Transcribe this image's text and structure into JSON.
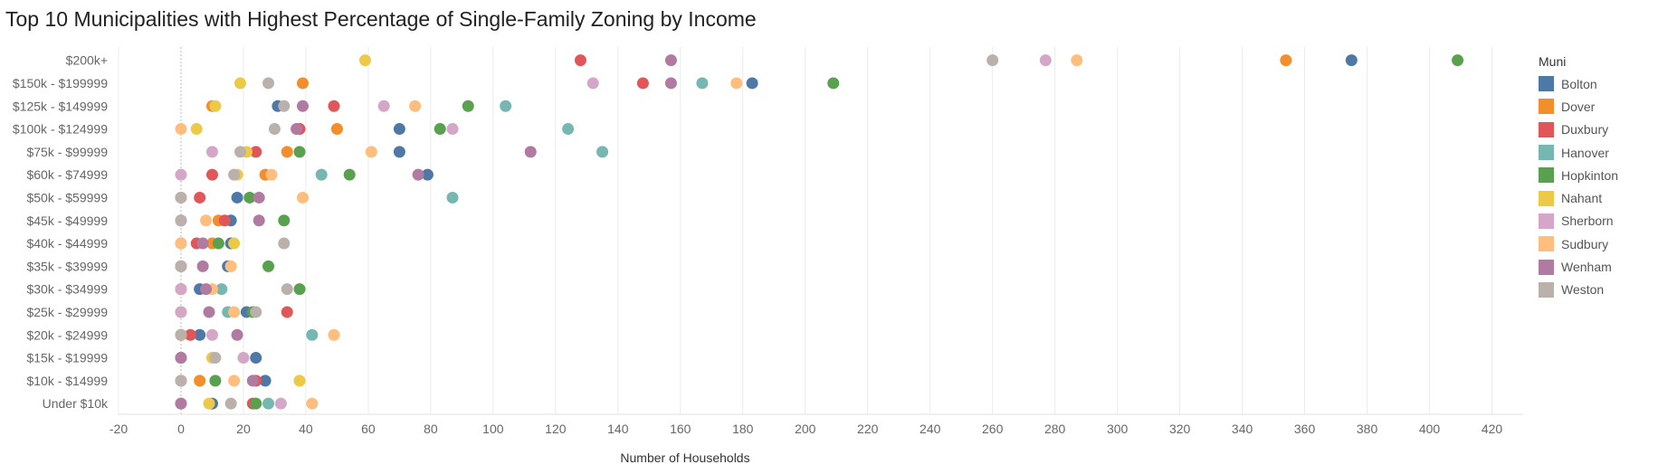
{
  "chart_data": {
    "type": "scatter",
    "title": "Top 10 Municipalities with Highest Percentage of Single-Family Zoning by Income",
    "xlabel": "Number of Households",
    "ylabel": "",
    "xlim": [
      -20,
      430
    ],
    "xticks": [
      -20,
      0,
      20,
      40,
      60,
      80,
      100,
      120,
      140,
      160,
      180,
      200,
      220,
      240,
      260,
      280,
      300,
      320,
      340,
      360,
      380,
      400,
      420
    ],
    "categories": [
      "$200k+",
      "$150k - $199999",
      "$125k - $149999",
      "$100k - $124999",
      "$75k - $99999",
      "$60k - $74999",
      "$50k - $59999",
      "$45k - $49999",
      "$40k - $44999",
      "$35k - $39999",
      "$30k - $34999",
      "$25k - $29999",
      "$20k - $24999",
      "$15k - $19999",
      "$10k - $14999",
      "Under $10k"
    ],
    "legend_title": "Muni",
    "legend_position": "right",
    "grid": "vertical",
    "series": [
      {
        "name": "Bolton",
        "color": "#4e79a7",
        "values": [
          375,
          183,
          31,
          70,
          70,
          79,
          18,
          16,
          16,
          15,
          6,
          21,
          6,
          24,
          27,
          10
        ]
      },
      {
        "name": "Dover",
        "color": "#f28e2b",
        "values": [
          354,
          39,
          10,
          50,
          34,
          27,
          0,
          12,
          10,
          0,
          0,
          0,
          0,
          0,
          6,
          0
        ]
      },
      {
        "name": "Duxbury",
        "color": "#e15759",
        "values": [
          128,
          148,
          49,
          38,
          24,
          10,
          6,
          14,
          5,
          0,
          0,
          34,
          3,
          0,
          24,
          23
        ]
      },
      {
        "name": "Hanover",
        "color": "#76b7b2",
        "values": [
          null,
          167,
          104,
          124,
          135,
          45,
          87,
          0,
          0,
          0,
          13,
          15,
          42,
          0,
          0,
          28
        ]
      },
      {
        "name": "Hopkinton",
        "color": "#59a14f",
        "values": [
          409,
          209,
          92,
          83,
          38,
          54,
          22,
          33,
          12,
          28,
          38,
          23,
          0,
          0,
          11,
          24
        ]
      },
      {
        "name": "Nahant",
        "color": "#edc948",
        "values": [
          59,
          19,
          11,
          5,
          21,
          18,
          0,
          0,
          17,
          0,
          0,
          0,
          0,
          10,
          38,
          9
        ]
      },
      {
        "name": "Sherborn",
        "color": "#d4a6c8",
        "values": [
          277,
          132,
          65,
          87,
          10,
          0,
          0,
          0,
          0,
          0,
          0,
          0,
          10,
          20,
          0,
          32
        ]
      },
      {
        "name": "Sudbury",
        "color": "#ffbe7d",
        "values": [
          287,
          178,
          75,
          0,
          61,
          29,
          39,
          8,
          0,
          16,
          10,
          17,
          49,
          0,
          17,
          42
        ]
      },
      {
        "name": "Wenham",
        "color": "#b07aa1",
        "values": [
          157,
          157,
          39,
          37,
          112,
          76,
          25,
          25,
          7,
          7,
          8,
          9,
          18,
          0,
          23,
          0
        ]
      },
      {
        "name": "Weston",
        "color": "#bab0ac",
        "values": [
          260,
          28,
          33,
          30,
          19,
          17,
          0,
          0,
          33,
          0,
          34,
          24,
          0,
          11,
          0,
          16
        ]
      }
    ]
  }
}
